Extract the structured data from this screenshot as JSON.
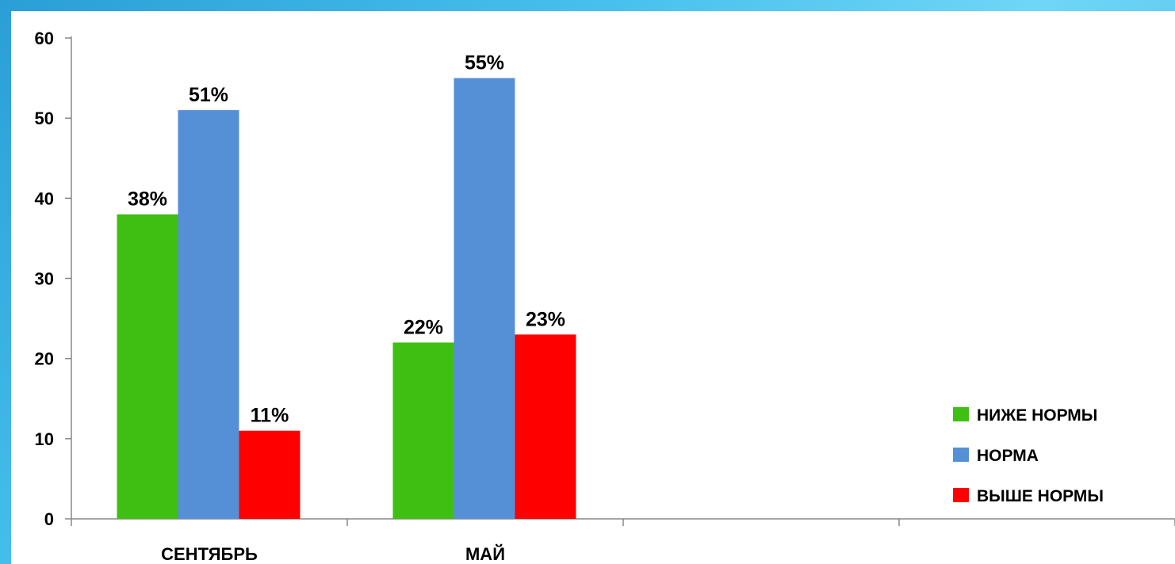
{
  "chart_data": {
    "type": "bar",
    "categories": [
      "СЕНТЯБРЬ",
      "МАЙ",
      "",
      ""
    ],
    "series": [
      {
        "name": "НИЖЕ НОРМЫ",
        "values": [
          38,
          22,
          null,
          null
        ],
        "labels": [
          "38%",
          "22%",
          "",
          ""
        ],
        "color": "#3fbf12"
      },
      {
        "name": "НОРМА",
        "values": [
          51,
          55,
          null,
          null
        ],
        "labels": [
          "51%",
          "55%",
          "",
          ""
        ],
        "color": "#5590d6"
      },
      {
        "name": "ВЫШЕ НОРМЫ",
        "values": [
          11,
          23,
          null,
          null
        ],
        "labels": [
          "11%",
          "23%",
          "",
          ""
        ],
        "color": "#ff0000"
      }
    ],
    "y_ticks": [
      "0",
      "10",
      "20",
      "30",
      "40",
      "50",
      "60"
    ],
    "ylim": [
      0,
      60
    ],
    "grid": false,
    "legend_position": "right"
  }
}
